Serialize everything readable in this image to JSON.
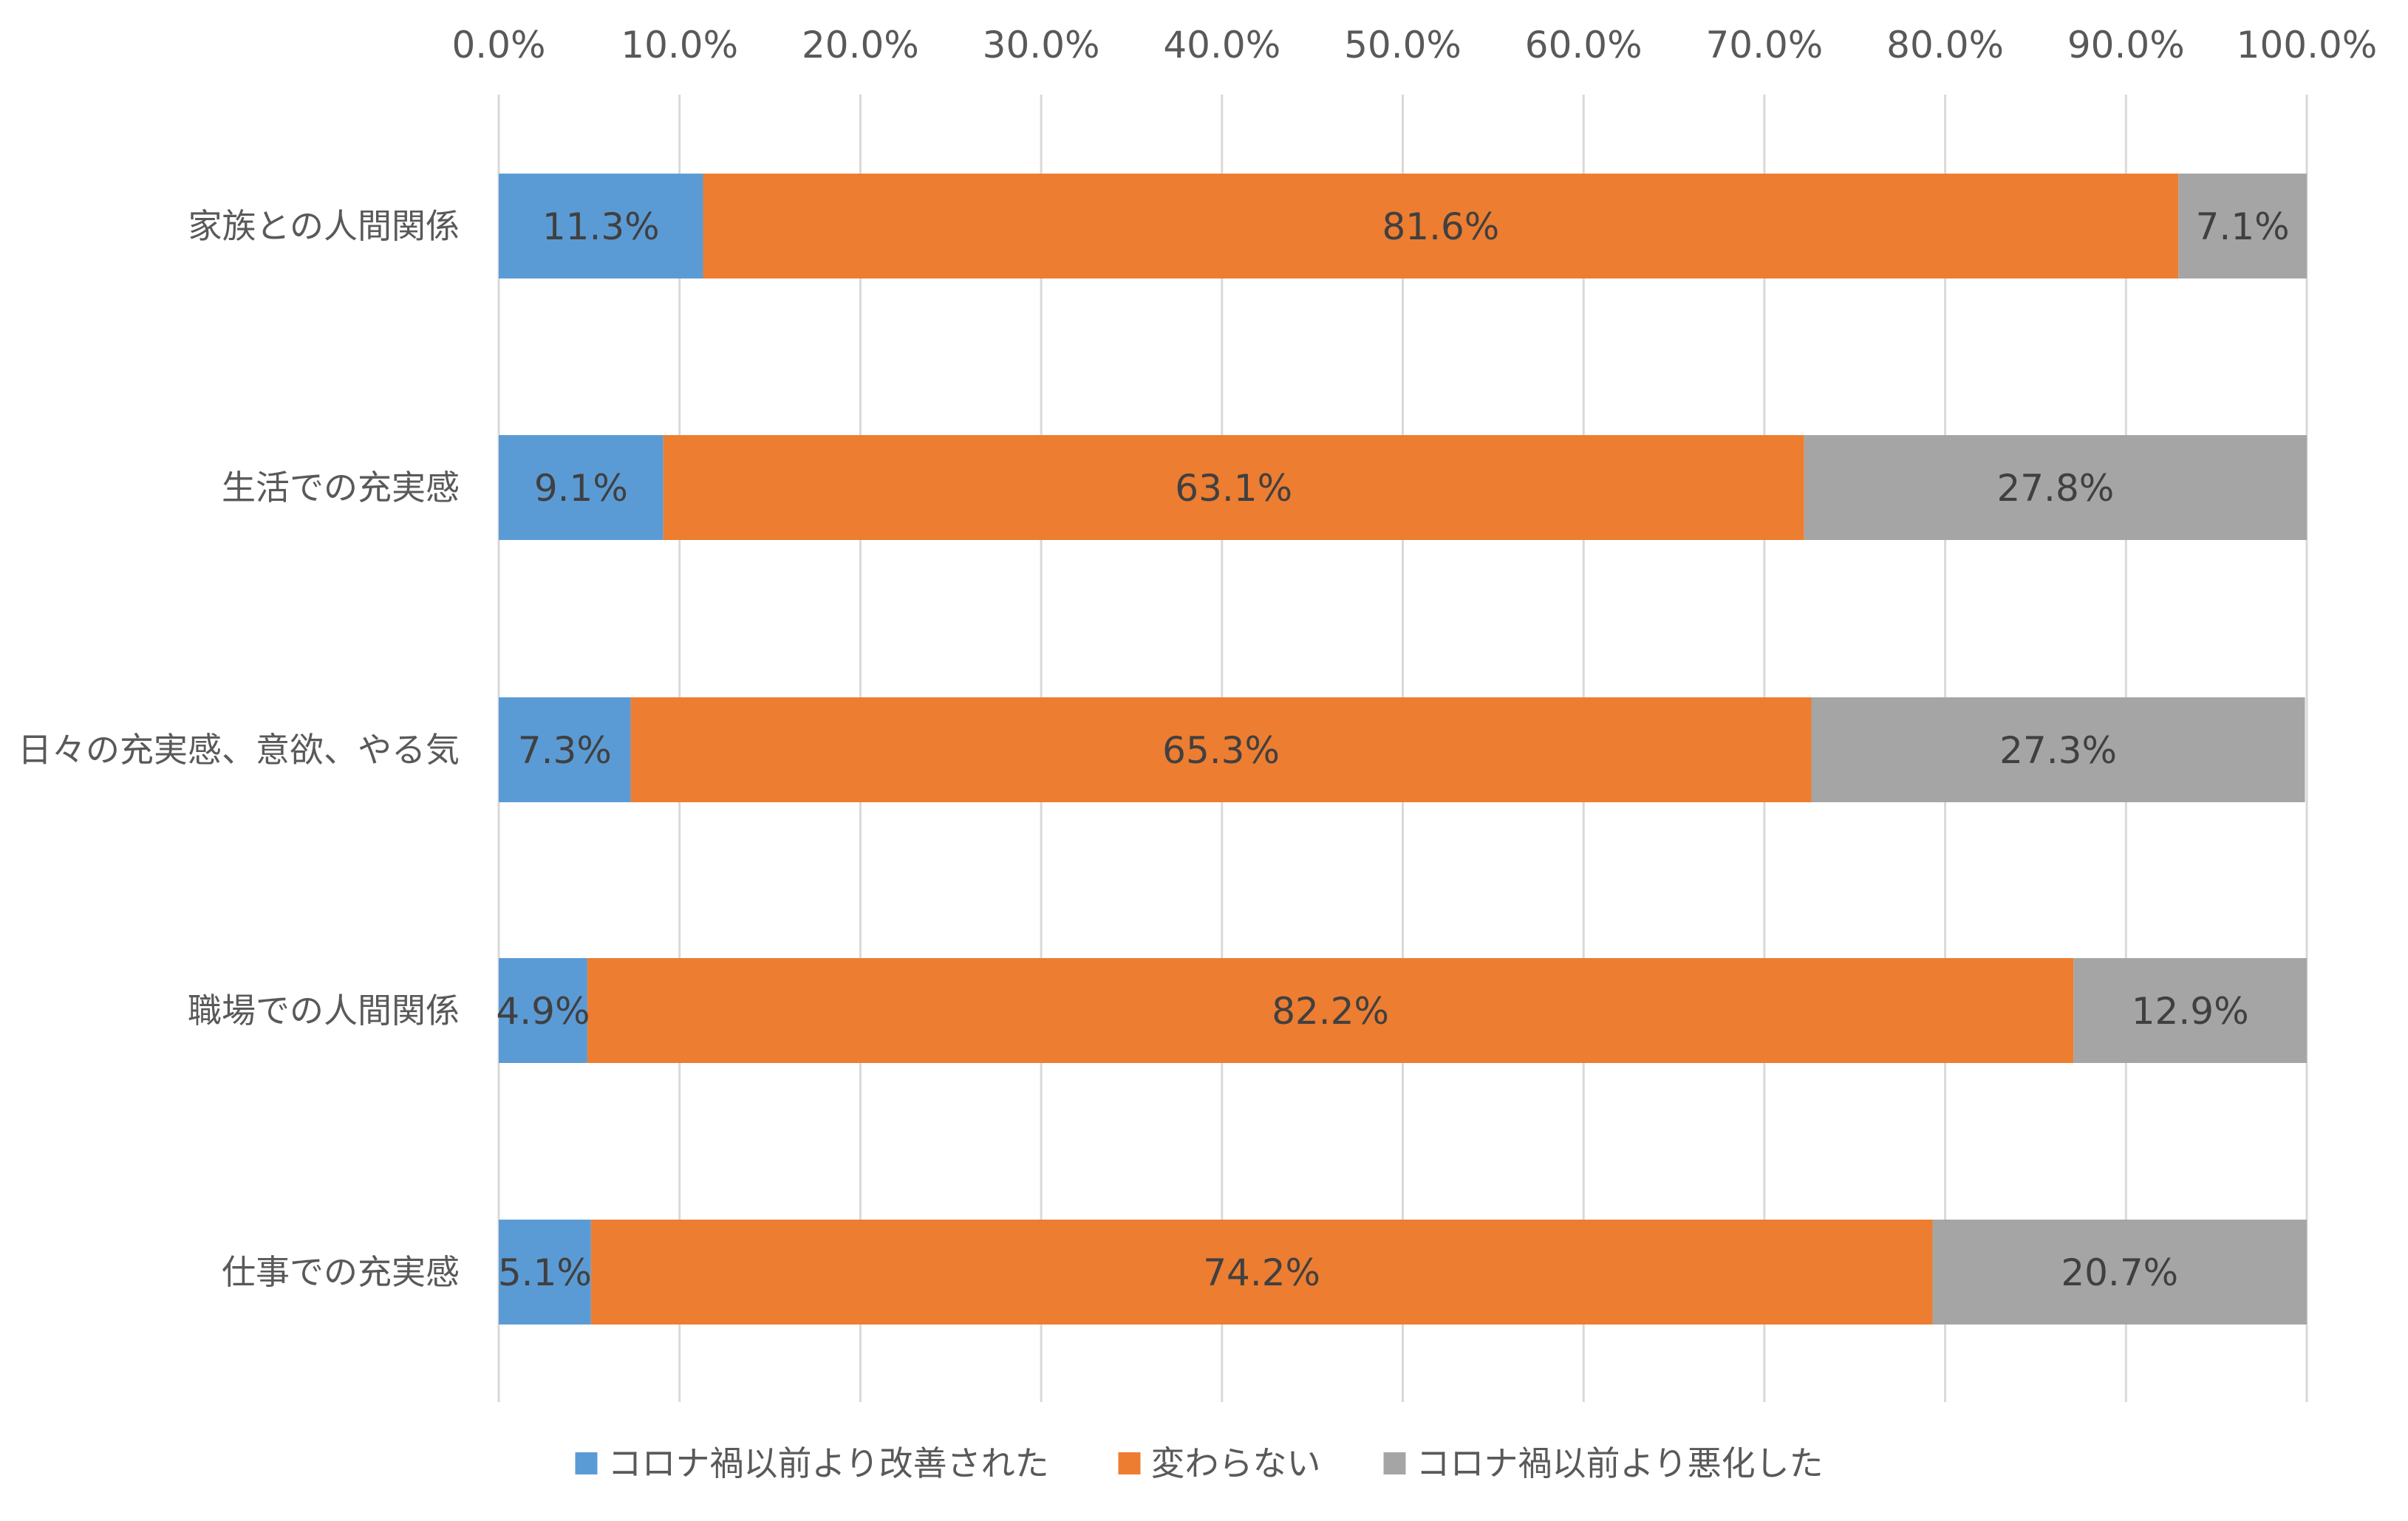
{
  "chart_data": {
    "type": "bar",
    "orientation": "horizontal",
    "stacked": "percent",
    "categories": [
      "家族との人間関係",
      "生活での充実感",
      "日々の充実感、意欲、やる気",
      "職場での人間関係",
      "仕事での充実感"
    ],
    "series": [
      {
        "name": "コロナ禍以前より改善された",
        "color": "#5B9BD5",
        "values": [
          11.3,
          9.1,
          7.3,
          4.9,
          5.1
        ],
        "labels": [
          "11.3%",
          "9.1%",
          "7.3%",
          "4.9%",
          "5.1%"
        ]
      },
      {
        "name": "変わらない",
        "color": "#ED7D31",
        "values": [
          81.6,
          63.1,
          65.3,
          82.2,
          74.2
        ],
        "labels": [
          "81.6%",
          "63.1%",
          "65.3%",
          "82.2%",
          "74.2%"
        ]
      },
      {
        "name": "コロナ禍以前より悪化した",
        "color": "#A5A5A5",
        "values": [
          7.1,
          27.8,
          27.3,
          12.9,
          20.7
        ],
        "labels": [
          "7.1%",
          "27.8%",
          "27.3%",
          "12.9%",
          "20.7%"
        ]
      }
    ],
    "xlim": [
      0,
      100
    ],
    "x_ticks": [
      0,
      10,
      20,
      30,
      40,
      50,
      60,
      70,
      80,
      90,
      100
    ],
    "x_tick_labels": [
      "0.0%",
      "10.0%",
      "20.0%",
      "30.0%",
      "40.0%",
      "50.0%",
      "60.0%",
      "70.0%",
      "80.0%",
      "90.0%",
      "100.0%"
    ],
    "x_axis_position": "top",
    "grid": true,
    "legend_position": "bottom",
    "gridline_color": "#D9D9D9",
    "title": "",
    "xlabel": "",
    "ylabel": ""
  }
}
